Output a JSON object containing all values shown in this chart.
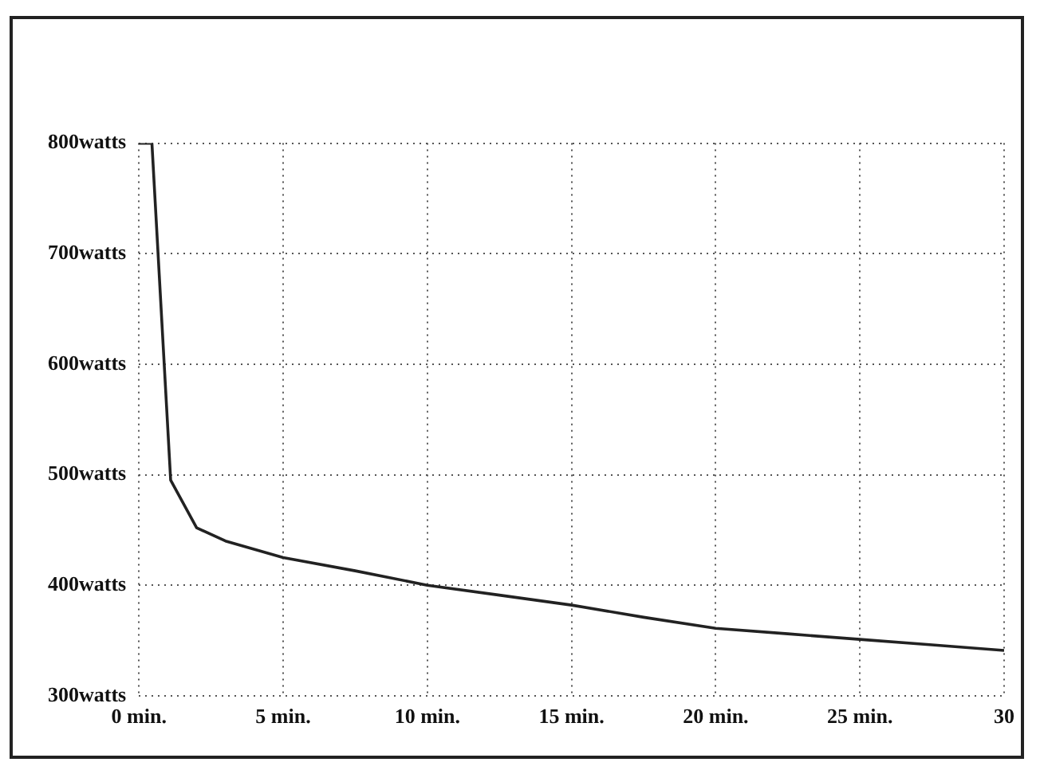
{
  "chart_data": {
    "type": "line",
    "x": [
      0,
      0.45,
      1.1,
      2,
      3,
      5,
      7.5,
      10,
      12.5,
      15,
      17.5,
      20,
      22.5,
      25,
      27.5,
      30
    ],
    "series": [
      {
        "color": "#222222",
        "values": [
          800,
          800,
          495,
          452,
          440,
          425,
          413,
          400,
          391,
          382,
          371,
          361,
          356,
          351,
          346,
          341
        ]
      }
    ],
    "xlim": [
      0,
      30
    ],
    "xticks": [
      {
        "value": 0,
        "label": "0 min."
      },
      {
        "value": 5,
        "label": "5 min."
      },
      {
        "value": 10,
        "label": "10 min."
      },
      {
        "value": 15,
        "label": "15 min."
      },
      {
        "value": 20,
        "label": "20 min."
      },
      {
        "value": 25,
        "label": "25 min."
      },
      {
        "value": 30,
        "label": "30"
      }
    ],
    "ylim": [
      300,
      800
    ],
    "yticks": [
      {
        "value": 300,
        "label": "300watts"
      },
      {
        "value": 400,
        "label": "400watts"
      },
      {
        "value": 500,
        "label": "500watts"
      },
      {
        "value": 600,
        "label": "600watts"
      },
      {
        "value": 700,
        "label": "700watts"
      },
      {
        "value": 800,
        "label": "800watts"
      }
    ],
    "grid": true,
    "legend": false,
    "marker": "none",
    "line_style": "solid"
  }
}
